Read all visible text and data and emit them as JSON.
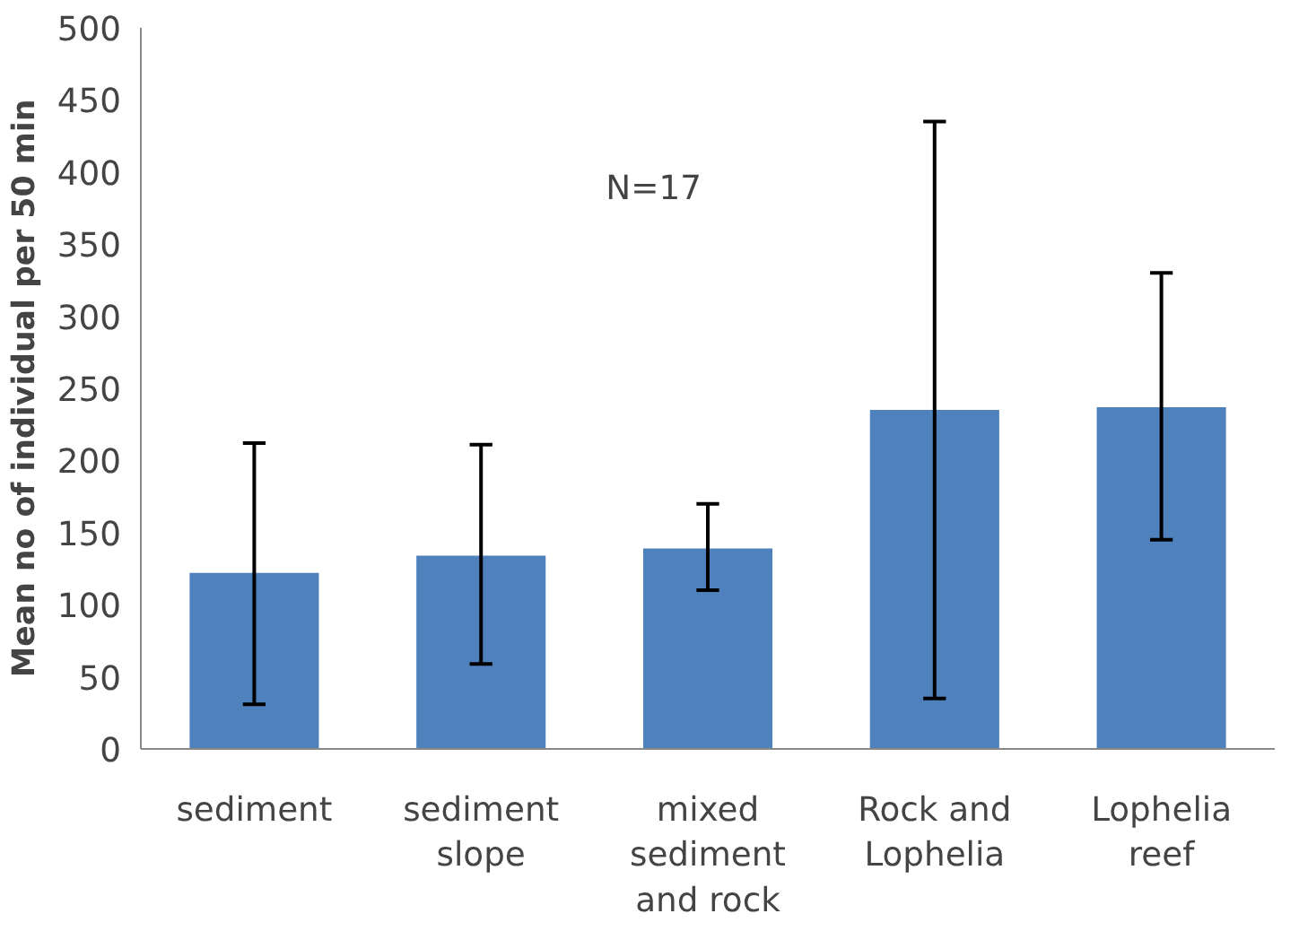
{
  "chart_data": {
    "type": "bar",
    "ylabel": "Mean no of individual per 50 min",
    "categories": [
      "sediment",
      "sediment slope",
      "mixed sediment and rock",
      "Rock and Lophelia",
      "Lophelia reef"
    ],
    "values": [
      122,
      134,
      139,
      235,
      237
    ],
    "errors": [
      [
        31,
        212
      ],
      [
        59,
        211
      ],
      [
        110,
        170
      ],
      [
        35,
        435
      ],
      [
        145,
        330
      ]
    ],
    "color": "#4f81bd",
    "ylim": [
      0,
      500
    ],
    "yticks": [
      0,
      50,
      100,
      150,
      200,
      250,
      300,
      350,
      400,
      450,
      500
    ],
    "grid": false,
    "annotations": [
      "N=17"
    ]
  }
}
